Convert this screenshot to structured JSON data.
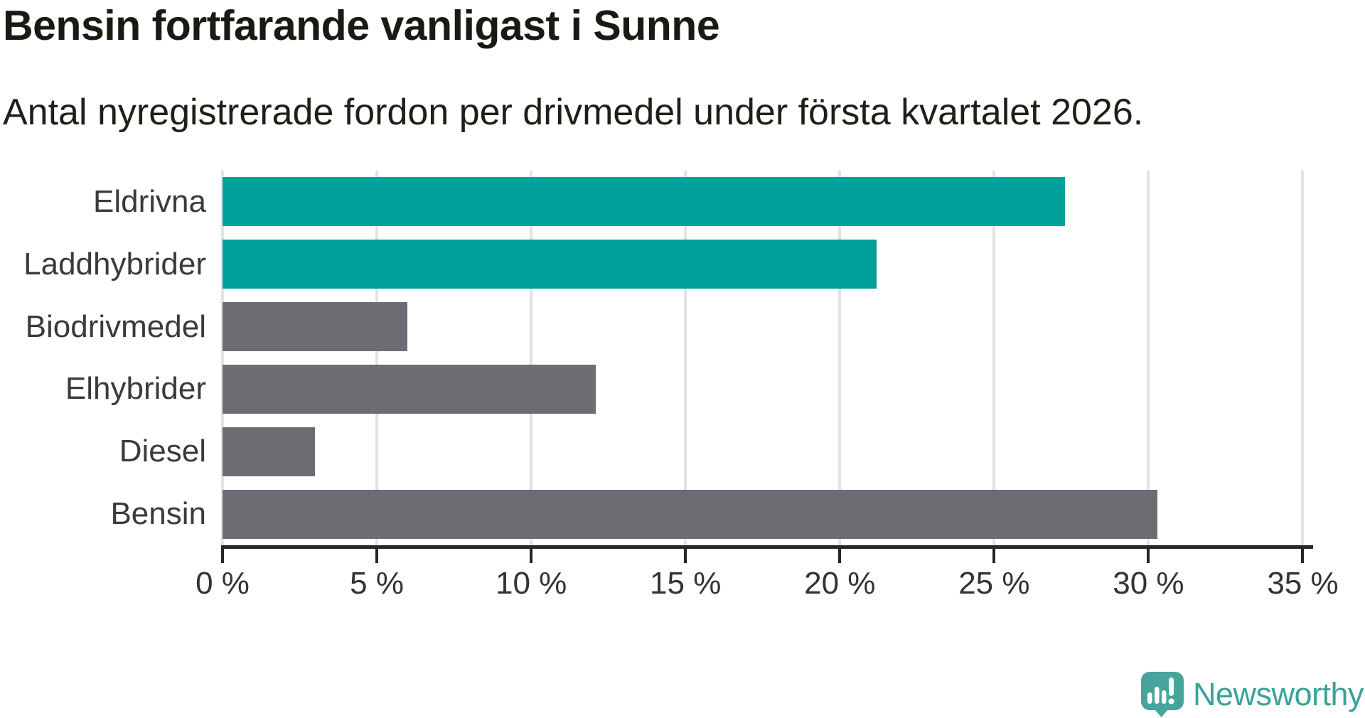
{
  "title": "Bensin fortfarande vanligast i Sunne",
  "subtitle": "Antal nyregistrerade fordon per drivmedel under första kvartalet 2026.",
  "colors": {
    "teal_bar": "#00a19a",
    "gray_bar": "#6c6c73",
    "gridline": "#e3e3e3",
    "axis": "#262626",
    "text_dark": "#181b12",
    "label_gray": "#3a3a3a",
    "brand_teal": "#3ba19a",
    "logo_bubble_teal": "#46a49c"
  },
  "chart_data": {
    "type": "bar",
    "orientation": "horizontal",
    "title": "Bensin fortfarande vanligast i Sunne",
    "subtitle": "Antal nyregistrerade fordon per drivmedel under första kvartalet 2026.",
    "categories": [
      "Eldrivna",
      "Laddhybrider",
      "Biodrivmedel",
      "Elhybrider",
      "Diesel",
      "Bensin"
    ],
    "values": [
      27.3,
      21.2,
      6.0,
      12.1,
      3.0,
      30.3
    ],
    "bar_colors": [
      "#00a19a",
      "#00a19a",
      "#6c6c73",
      "#6c6c73",
      "#6c6c73",
      "#6c6c73"
    ],
    "unit": "%",
    "xlim": [
      0,
      35.3
    ],
    "x_ticks": [
      {
        "value": 0,
        "label": "0 %"
      },
      {
        "value": 5,
        "label": "5 %"
      },
      {
        "value": 10,
        "label": "10 %"
      },
      {
        "value": 15,
        "label": "15 %"
      },
      {
        "value": 20,
        "label": "20 %"
      },
      {
        "value": 25,
        "label": "25 %"
      },
      {
        "value": 30,
        "label": "30 %"
      },
      {
        "value": 35,
        "label": "35 %"
      }
    ],
    "grid": true,
    "legend": "none",
    "data_labels": false
  },
  "branding": {
    "logo_text": "Newsworthy",
    "logo_icon": "newsworthy-speech-bubble-bar-chart-icon"
  }
}
